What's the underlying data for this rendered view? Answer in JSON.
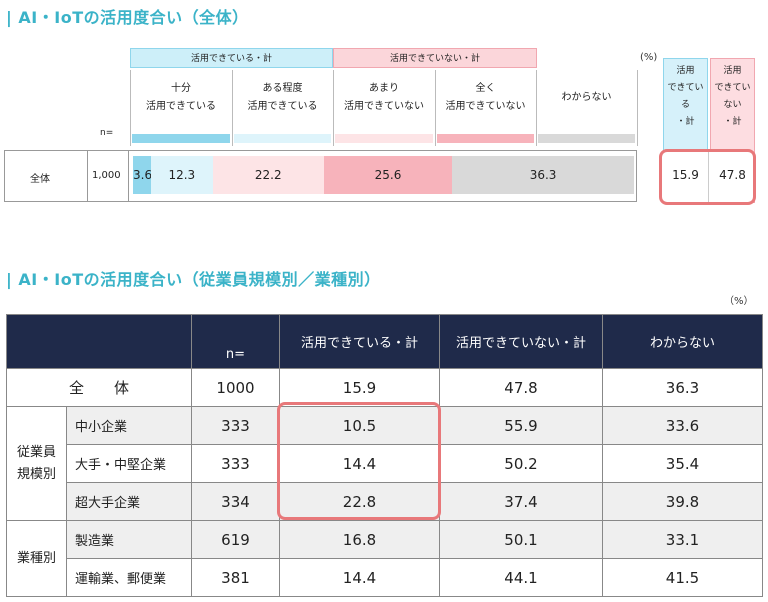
{
  "title1": "| AI・IoTの活用度合い（全体）",
  "title2": "| AI・IoTの活用度合い（従業員規模別／業種別）",
  "pct_label": "(%)",
  "pct_label2": "（%）",
  "chart_data": [
    {
      "type": "bar",
      "title": "| AI・IoTの活用度合い（全体）",
      "group_headers": [
        "活用できている・計",
        "活用できていない・計"
      ],
      "categories": [
        "十分活用できている",
        "ある程度活用できている",
        "あまり活用できていない",
        "全く活用できていない",
        "わからない"
      ],
      "category_display": [
        [
          "十分",
          "活用できている"
        ],
        [
          "ある程度",
          "活用できている"
        ],
        [
          "あまり",
          "活用できていない"
        ],
        [
          "全く",
          "活用できていない"
        ],
        [
          "わからない"
        ]
      ],
      "n_label": "n=",
      "rows": [
        {
          "label": "全体",
          "n": "1,000",
          "values": [
            3.6,
            12.3,
            22.2,
            25.6,
            36.3
          ]
        }
      ],
      "summary_headers": [
        [
          "活用",
          "できてい",
          "る",
          "・計"
        ],
        [
          "活用",
          "できてい",
          "ない",
          "・計"
        ]
      ],
      "summary_values": [
        15.9,
        47.8
      ],
      "colors": [
        "#8fd6ec",
        "#def4fb",
        "#fde4e6",
        "#f7b3bb",
        "#d9d9d9"
      ]
    },
    {
      "type": "table",
      "title": "| AI・IoTの活用度合い（従業員規模別／業種別）",
      "columns": [
        "n=",
        "活用できている・計",
        "活用できていない・計",
        "わからない"
      ],
      "total": {
        "label": "全　　体",
        "values": [
          "1000",
          "15.9",
          "47.8",
          "36.3"
        ]
      },
      "groups": [
        {
          "name": "従業員規模別",
          "rows": [
            {
              "label": "中小企業",
              "values": [
                "333",
                "10.5",
                "55.9",
                "33.6"
              ]
            },
            {
              "label": "大手・中堅企業",
              "values": [
                "333",
                "14.4",
                "50.2",
                "35.4"
              ]
            },
            {
              "label": "超大手企業",
              "values": [
                "334",
                "22.8",
                "37.4",
                "39.8"
              ]
            }
          ]
        },
        {
          "name": "業種別",
          "rows": [
            {
              "label": "製造業",
              "values": [
                "619",
                "16.8",
                "50.1",
                "33.1"
              ]
            },
            {
              "label": "運輸業、郵便業",
              "values": [
                "381",
                "14.4",
                "44.1",
                "41.5"
              ]
            }
          ]
        }
      ]
    }
  ]
}
